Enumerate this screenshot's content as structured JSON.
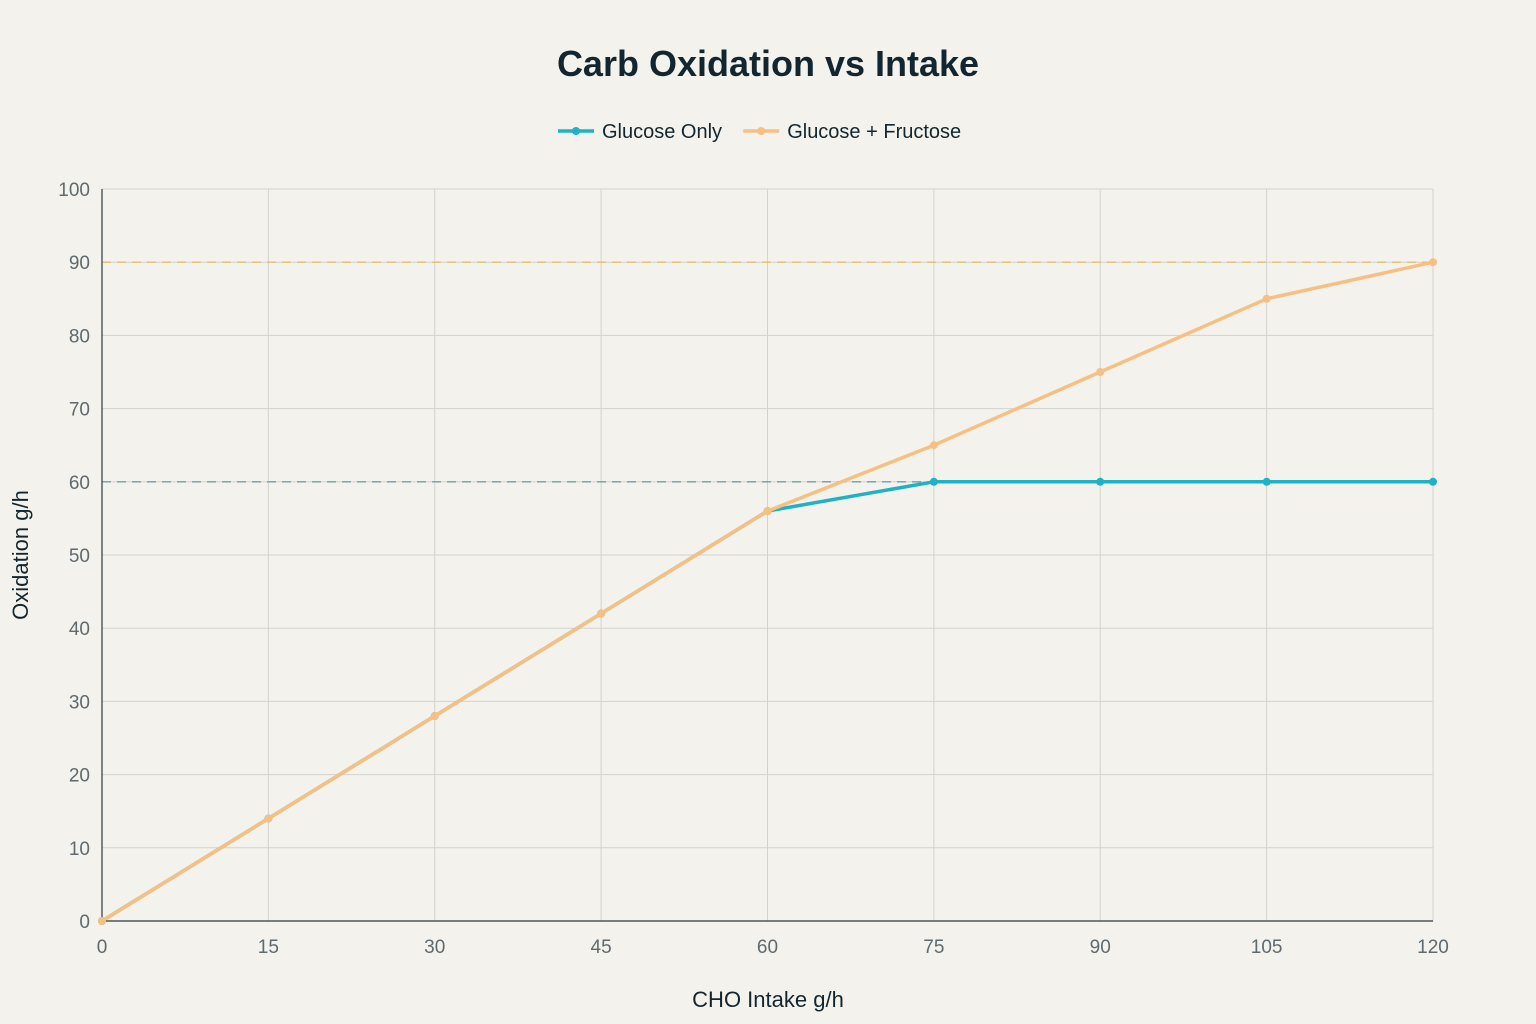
{
  "chart_data": {
    "type": "line",
    "title": "Carb Oxidation vs Intake",
    "xlabel": "CHO Intake g/h",
    "ylabel": "Oxidation g/h",
    "x": [
      0,
      15,
      30,
      45,
      60,
      75,
      90,
      105,
      120
    ],
    "xlim": [
      0,
      120
    ],
    "ylim": [
      0,
      100
    ],
    "x_ticks": [
      "0",
      "15",
      "30",
      "45",
      "60",
      "75",
      "90",
      "105",
      "120"
    ],
    "y_ticks": [
      "0",
      "10",
      "20",
      "30",
      "40",
      "50",
      "60",
      "70",
      "80",
      "90",
      "100"
    ],
    "grid": true,
    "legend_position": "top-center",
    "series": [
      {
        "name": "Glucose Only",
        "color": "#1fb2c4",
        "values": [
          0,
          14,
          28,
          42,
          56,
          60,
          60,
          60,
          60
        ]
      },
      {
        "name": "Glucose + Fructose",
        "color": "#f7c083",
        "values": [
          0,
          14,
          28,
          42,
          56,
          65,
          75,
          85,
          90
        ]
      }
    ],
    "reference_lines": [
      {
        "y": 60,
        "color": "#6f9fad",
        "style": "dashed"
      },
      {
        "y": 90,
        "color": "#e3bf6c",
        "style": "dashed"
      }
    ]
  }
}
